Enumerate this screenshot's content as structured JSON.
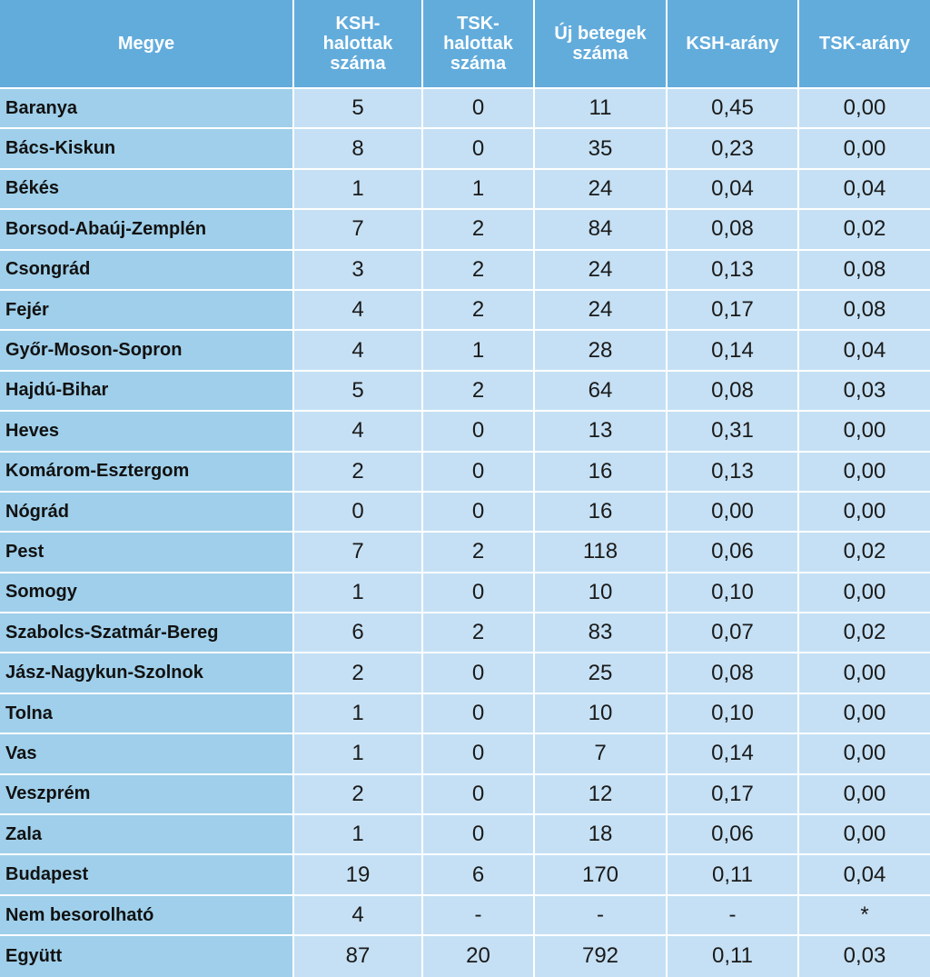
{
  "columns": [
    "Megye",
    "KSH-\nhalottak\nszáma",
    "TSK-\nhalottak\nszáma",
    "Új betegek\nszáma",
    "KSH-arány",
    "TSK-arány"
  ],
  "rows": [
    [
      "Baranya",
      "5",
      "0",
      "11",
      "0,45",
      "0,00"
    ],
    [
      "Bács-Kiskun",
      "8",
      "0",
      "35",
      "0,23",
      "0,00"
    ],
    [
      "Békés",
      "1",
      "1",
      "24",
      "0,04",
      "0,04"
    ],
    [
      "Borsod-Abaúj-Zemplén",
      "7",
      "2",
      "84",
      "0,08",
      "0,02"
    ],
    [
      "Csongrád",
      "3",
      "2",
      "24",
      "0,13",
      "0,08"
    ],
    [
      "Fejér",
      "4",
      "2",
      "24",
      "0,17",
      "0,08"
    ],
    [
      "Győr-Moson-Sopron",
      "4",
      "1",
      "28",
      "0,14",
      "0,04"
    ],
    [
      "Hajdú-Bihar",
      "5",
      "2",
      "64",
      "0,08",
      "0,03"
    ],
    [
      "Heves",
      "4",
      "0",
      "13",
      "0,31",
      "0,00"
    ],
    [
      "Komárom-Esztergom",
      "2",
      "0",
      "16",
      "0,13",
      "0,00"
    ],
    [
      "Nógrád",
      "0",
      "0",
      "16",
      "0,00",
      "0,00"
    ],
    [
      "Pest",
      "7",
      "2",
      "118",
      "0,06",
      "0,02"
    ],
    [
      "Somogy",
      "1",
      "0",
      "10",
      "0,10",
      "0,00"
    ],
    [
      "Szabolcs-Szatmár-Bereg",
      "6",
      "2",
      "83",
      "0,07",
      "0,02"
    ],
    [
      "Jász-Nagykun-Szolnok",
      "2",
      "0",
      "25",
      "0,08",
      "0,00"
    ],
    [
      "Tolna",
      "1",
      "0",
      "10",
      "0,10",
      "0,00"
    ],
    [
      "Vas",
      "1",
      "0",
      "7",
      "0,14",
      "0,00"
    ],
    [
      "Veszprém",
      "2",
      "0",
      "12",
      "0,17",
      "0,00"
    ],
    [
      "Zala",
      "1",
      "0",
      "18",
      "0,06",
      "0,00"
    ],
    [
      "Budapest",
      "19",
      "6",
      "170",
      "0,11",
      "0,04"
    ],
    [
      "Nem besorolható",
      "4",
      "-",
      "-",
      "-",
      "*"
    ],
    [
      "Együtt",
      "87",
      "20",
      "792",
      "0,11",
      "0,03"
    ]
  ]
}
